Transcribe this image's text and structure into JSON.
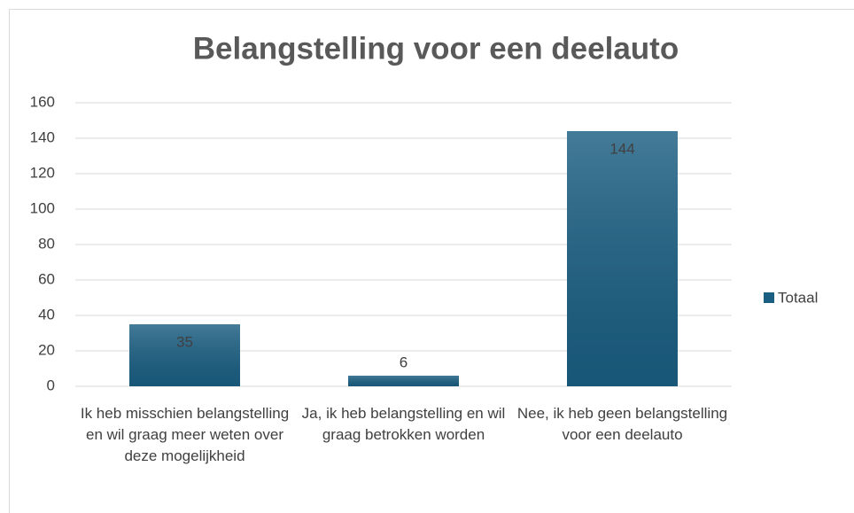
{
  "chart_data": {
    "type": "bar",
    "title": "Belangstelling voor een deelauto",
    "categories": [
      "Ik heb misschien belangstelling en wil graag meer weten over deze mogelijkheid",
      "Ja, ik heb belangstelling en wil graag betrokken worden",
      "Nee, ik heb geen belangstelling voor een deelauto"
    ],
    "series": [
      {
        "name": "Totaal",
        "color": "#1a5e82",
        "values": [
          35,
          6,
          144
        ]
      }
    ],
    "ylim": [
      0,
      160
    ],
    "yticks": [
      0,
      20,
      40,
      60,
      80,
      100,
      120,
      140,
      160
    ],
    "grid": true,
    "legend": "right"
  }
}
